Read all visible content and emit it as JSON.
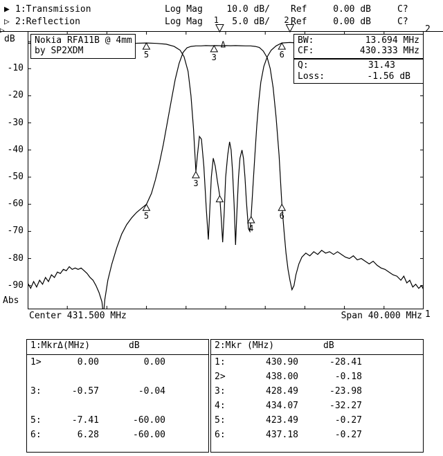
{
  "header": {
    "ch1": {
      "arrow": "▶",
      "label": "1:Transmission",
      "format": "Log Mag",
      "scale": "10.0 dB/",
      "ref_label": "Ref",
      "ref_value": "0.00 dB",
      "cal": "C?"
    },
    "ch2": {
      "arrow": "▷",
      "label": "2:Reflection",
      "format": "Log Mag",
      "scale": "5.0 dB/",
      "ref_label": "Ref",
      "ref_value": "0.00 dB",
      "cal": "C?"
    },
    "edge_ref_arrow": "▷"
  },
  "plot": {
    "y_unit": "dB",
    "y_ticks": [
      "-10",
      "-20",
      "-30",
      "-40",
      "-50",
      "-60",
      "-70",
      "-80",
      "-90"
    ],
    "y_bottom": "Abs",
    "ch2_edge_label": "2",
    "ch1_edge_label": "1",
    "center_label": "Center 431.500 MHz",
    "span_label": "Span 40.000 MHz",
    "device_box": {
      "line1": "Nokia RFA11B @ 4mm",
      "line2": "by SP2XDM"
    },
    "bw_box": {
      "rows": [
        {
          "label": "BW:",
          "value": "13.694 MHz"
        },
        {
          "label": "CF:",
          "value": "430.333 MHz"
        }
      ]
    },
    "q_box": {
      "rows": [
        {
          "label": "Q:",
          "value": "31.43"
        },
        {
          "label": "Loss:",
          "value": "-1.56 dB"
        }
      ]
    }
  },
  "tables": {
    "left": {
      "col1": "1:MkrΔ(MHz)",
      "col2": "dB",
      "rows": [
        [
          "1>",
          "0.00",
          "0.00"
        ],
        [
          "",
          "",
          ""
        ],
        [
          "3:",
          "-0.57",
          "-0.04"
        ],
        [
          "",
          "",
          ""
        ],
        [
          "5:",
          "-7.41",
          "-60.00"
        ],
        [
          "6:",
          "6.28",
          "-60.00"
        ]
      ]
    },
    "right": {
      "col1": "2:Mkr (MHz)",
      "col2": "dB",
      "rows": [
        [
          "1:",
          "430.90",
          "-28.41"
        ],
        [
          "2>",
          "438.00",
          "-0.18"
        ],
        [
          "3:",
          "428.49",
          "-23.98"
        ],
        [
          "4:",
          "434.07",
          "-32.27"
        ],
        [
          "5:",
          "423.49",
          "-0.27"
        ],
        [
          "6:",
          "437.18",
          "-0.27"
        ]
      ]
    }
  },
  "chart_data": {
    "type": "line",
    "x_axis": {
      "center_mhz": 431.5,
      "span_mhz": 40.0,
      "min": 411.5,
      "max": 451.5,
      "unit": "MHz"
    },
    "y_axis": {
      "unit": "dB",
      "ref_db": 0.0,
      "ch1_db_per_div": 10.0,
      "ch2_db_per_div": 5.0,
      "tick_labels": [
        -10,
        -20,
        -30,
        -40,
        -50,
        -60,
        -70,
        -80,
        -90
      ],
      "grid": "ticks-only"
    },
    "readouts": {
      "bw_mhz": 13.694,
      "cf_mhz": 430.333,
      "q": 31.43,
      "loss_db": -1.56
    },
    "series": [
      {
        "name": "Transmission",
        "channel": 1,
        "db_per_div": 10,
        "points": [
          [
            411.5,
            -89
          ],
          [
            411.8,
            -91
          ],
          [
            412.1,
            -88.5
          ],
          [
            412.4,
            -90.5
          ],
          [
            412.7,
            -88
          ],
          [
            413.0,
            -89.5
          ],
          [
            413.3,
            -87
          ],
          [
            413.6,
            -88.5
          ],
          [
            413.9,
            -86
          ],
          [
            414.2,
            -87
          ],
          [
            414.5,
            -85
          ],
          [
            414.8,
            -85.5
          ],
          [
            415.1,
            -84
          ],
          [
            415.4,
            -84.5
          ],
          [
            415.7,
            -83
          ],
          [
            416.0,
            -84
          ],
          [
            416.3,
            -83.5
          ],
          [
            416.6,
            -84
          ],
          [
            416.9,
            -83.5
          ],
          [
            417.2,
            -84.5
          ],
          [
            417.5,
            -85.5
          ],
          [
            417.8,
            -87
          ],
          [
            418.1,
            -88
          ],
          [
            418.4,
            -90
          ],
          [
            418.7,
            -92.5
          ],
          [
            419.0,
            -96
          ],
          [
            419.15,
            -101
          ],
          [
            419.3,
            -95
          ],
          [
            419.6,
            -88
          ],
          [
            420.0,
            -82
          ],
          [
            420.5,
            -76
          ],
          [
            421.0,
            -71
          ],
          [
            421.5,
            -67.5
          ],
          [
            422.0,
            -65
          ],
          [
            422.5,
            -63
          ],
          [
            423.0,
            -61.5
          ],
          [
            423.5,
            -60
          ],
          [
            424.0,
            -56
          ],
          [
            424.4,
            -51
          ],
          [
            424.8,
            -45
          ],
          [
            425.2,
            -38
          ],
          [
            425.6,
            -30
          ],
          [
            426.0,
            -22
          ],
          [
            426.4,
            -14
          ],
          [
            426.8,
            -8
          ],
          [
            427.2,
            -4
          ],
          [
            427.6,
            -2.3
          ],
          [
            428.0,
            -1.8
          ],
          [
            428.5,
            -1.6
          ],
          [
            429.0,
            -1.6
          ],
          [
            429.5,
            -1.5
          ],
          [
            430.0,
            -1.55
          ],
          [
            430.5,
            -1.5
          ],
          [
            431.0,
            -1.55
          ],
          [
            431.5,
            -1.5
          ],
          [
            432.0,
            -1.55
          ],
          [
            432.5,
            -1.5
          ],
          [
            433.0,
            -1.55
          ],
          [
            433.5,
            -1.6
          ],
          [
            434.0,
            -1.6
          ],
          [
            434.5,
            -1.8
          ],
          [
            434.9,
            -2.2
          ],
          [
            435.3,
            -3.5
          ],
          [
            435.7,
            -6
          ],
          [
            436.0,
            -10
          ],
          [
            436.3,
            -17
          ],
          [
            436.6,
            -28
          ],
          [
            436.9,
            -42
          ],
          [
            437.18,
            -60
          ],
          [
            437.4,
            -70
          ],
          [
            437.6,
            -78
          ],
          [
            437.8,
            -84
          ],
          [
            438.0,
            -88
          ],
          [
            438.2,
            -91.5
          ],
          [
            438.4,
            -90
          ],
          [
            438.6,
            -86
          ],
          [
            438.9,
            -82
          ],
          [
            439.2,
            -79.5
          ],
          [
            439.6,
            -78
          ],
          [
            440.0,
            -79
          ],
          [
            440.4,
            -77.5
          ],
          [
            440.8,
            -78.5
          ],
          [
            441.2,
            -77
          ],
          [
            441.6,
            -78
          ],
          [
            442.0,
            -77.5
          ],
          [
            442.4,
            -78.5
          ],
          [
            442.8,
            -77.5
          ],
          [
            443.2,
            -78.5
          ],
          [
            443.6,
            -79.5
          ],
          [
            444.0,
            -80
          ],
          [
            444.4,
            -79
          ],
          [
            444.8,
            -80.5
          ],
          [
            445.2,
            -80
          ],
          [
            445.6,
            -81
          ],
          [
            446.0,
            -82
          ],
          [
            446.4,
            -81
          ],
          [
            446.8,
            -82.5
          ],
          [
            447.2,
            -83.5
          ],
          [
            447.6,
            -84
          ],
          [
            448.0,
            -85
          ],
          [
            448.4,
            -86
          ],
          [
            448.8,
            -86.5
          ],
          [
            449.2,
            -88
          ],
          [
            449.5,
            -86.5
          ],
          [
            449.8,
            -89
          ],
          [
            450.1,
            -88
          ],
          [
            450.4,
            -90.5
          ],
          [
            450.7,
            -89.5
          ],
          [
            451.0,
            -91
          ],
          [
            451.3,
            -90
          ],
          [
            451.5,
            -91.5
          ]
        ]
      },
      {
        "name": "Reflection",
        "channel": 2,
        "db_per_div": 5,
        "points": [
          [
            411.5,
            -0.3
          ],
          [
            413.0,
            -0.35
          ],
          [
            414.5,
            -0.3
          ],
          [
            416.0,
            -0.4
          ],
          [
            417.5,
            -0.3
          ],
          [
            419.0,
            -0.35
          ],
          [
            420.5,
            -0.3
          ],
          [
            422.0,
            -0.35
          ],
          [
            423.5,
            -0.27
          ],
          [
            424.5,
            -0.35
          ],
          [
            425.5,
            -0.5
          ],
          [
            426.3,
            -0.9
          ],
          [
            426.9,
            -1.6
          ],
          [
            427.3,
            -2.8
          ],
          [
            427.7,
            -5.5
          ],
          [
            428.0,
            -10
          ],
          [
            428.25,
            -16
          ],
          [
            428.49,
            -23.98
          ],
          [
            428.65,
            -21
          ],
          [
            428.85,
            -17.5
          ],
          [
            429.05,
            -18
          ],
          [
            429.3,
            -23
          ],
          [
            429.55,
            -31
          ],
          [
            429.75,
            -36.5
          ],
          [
            429.9,
            -31
          ],
          [
            430.05,
            -25
          ],
          [
            430.25,
            -21.5
          ],
          [
            430.45,
            -23
          ],
          [
            430.65,
            -25.5
          ],
          [
            430.9,
            -28.4
          ],
          [
            431.05,
            -32.5
          ],
          [
            431.2,
            -37
          ],
          [
            431.35,
            -31.5
          ],
          [
            431.5,
            -25
          ],
          [
            431.7,
            -21
          ],
          [
            431.9,
            -18.5
          ],
          [
            432.05,
            -20
          ],
          [
            432.2,
            -24
          ],
          [
            432.35,
            -30
          ],
          [
            432.5,
            -37.5
          ],
          [
            432.65,
            -31
          ],
          [
            432.8,
            -25
          ],
          [
            432.95,
            -21.5
          ],
          [
            433.15,
            -20
          ],
          [
            433.3,
            -21.5
          ],
          [
            433.45,
            -25
          ],
          [
            433.6,
            -29.5
          ],
          [
            433.8,
            -34.5
          ],
          [
            433.95,
            -35
          ],
          [
            434.07,
            -32.27
          ],
          [
            434.25,
            -27
          ],
          [
            434.45,
            -21
          ],
          [
            434.65,
            -15.5
          ],
          [
            434.85,
            -11
          ],
          [
            435.05,
            -7.5
          ],
          [
            435.35,
            -4.6
          ],
          [
            435.7,
            -2.8
          ],
          [
            436.1,
            -1.6
          ],
          [
            436.6,
            -0.8
          ],
          [
            437.18,
            -0.27
          ],
          [
            437.7,
            -0.2
          ],
          [
            438.0,
            -0.18
          ],
          [
            439.0,
            -0.3
          ],
          [
            440.5,
            -0.25
          ],
          [
            442.0,
            -0.35
          ],
          [
            443.5,
            -0.3
          ],
          [
            445.0,
            -0.35
          ],
          [
            446.5,
            -0.3
          ],
          [
            448.0,
            -0.35
          ],
          [
            449.5,
            -0.3
          ],
          [
            451.5,
            -0.35
          ]
        ]
      }
    ],
    "markers": [
      {
        "label": "1",
        "channel": 1,
        "f": 430.9,
        "db": 0.0,
        "style": "active-top"
      },
      {
        "label": "2",
        "channel": 2,
        "f": 438.0,
        "db": -0.18,
        "style": "active-top"
      },
      {
        "label": "Δ",
        "channel": 1,
        "f": 430.9,
        "db": -1.4,
        "style": "delta"
      },
      {
        "label": "3",
        "channel": 1,
        "f": 430.33,
        "db": -1.5,
        "style": "up"
      },
      {
        "label": "5",
        "channel": 1,
        "f": 423.49,
        "db": -60.0,
        "style": "up"
      },
      {
        "label": "6",
        "channel": 1,
        "f": 437.18,
        "db": -60.0,
        "style": "up"
      },
      {
        "label": "",
        "channel": 2,
        "f": 430.9,
        "db": -28.41,
        "style": "up"
      },
      {
        "label": "3",
        "channel": 2,
        "f": 428.49,
        "db": -23.98,
        "style": "up"
      },
      {
        "label": "4",
        "channel": 2,
        "f": 434.07,
        "db": -32.27,
        "style": "up"
      },
      {
        "label": "5",
        "channel": 2,
        "f": 423.49,
        "db": -0.27,
        "style": "up"
      },
      {
        "label": "6",
        "channel": 2,
        "f": 437.18,
        "db": -0.27,
        "style": "up"
      }
    ]
  }
}
